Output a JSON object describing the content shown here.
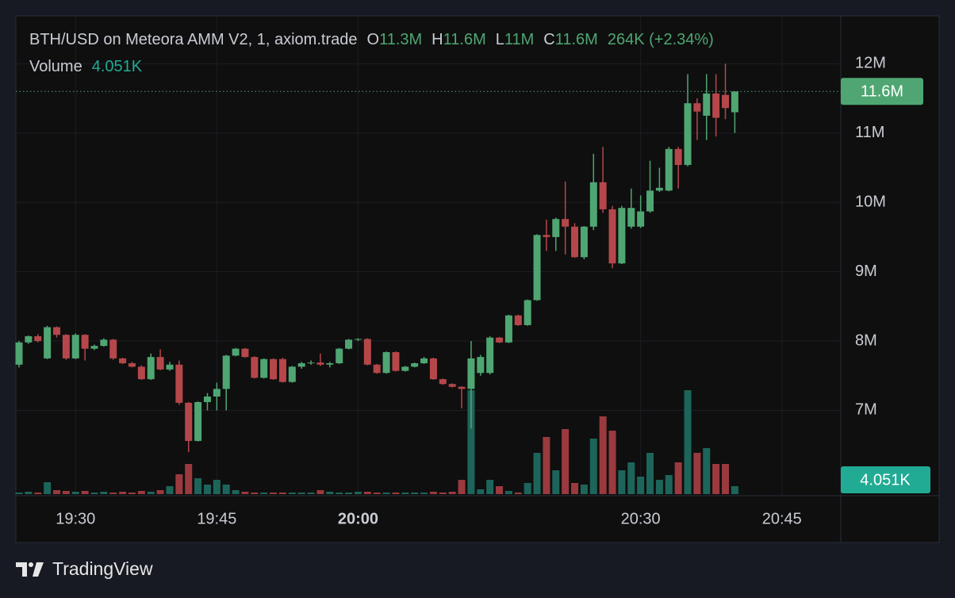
{
  "chart_data": {
    "type": "candlestick",
    "title": "BTH/USD on Meteora AMM V2, 1, axiom.trade",
    "ohlc_labels": [
      {
        "key": "O",
        "value": "11.3M"
      },
      {
        "key": "H",
        "value": "11.6M"
      },
      {
        "key": "L",
        "value": "11M"
      },
      {
        "key": "C",
        "value": "11.6M"
      }
    ],
    "change": "264K (+2.34%)",
    "volume_title": "Volume",
    "volume_value_label": "4.051K",
    "last_price_label": "11.6M",
    "x": [
      "19:24",
      "19:25",
      "19:26",
      "19:27",
      "19:28",
      "19:29",
      "19:30",
      "19:31",
      "19:32",
      "19:33",
      "19:34",
      "19:35",
      "19:36",
      "19:37",
      "19:38",
      "19:39",
      "19:40",
      "19:41",
      "19:42",
      "19:43",
      "19:44",
      "19:45",
      "19:46",
      "19:47",
      "19:48",
      "19:49",
      "19:50",
      "19:51",
      "19:52",
      "19:53",
      "19:54",
      "19:55",
      "19:56",
      "19:57",
      "19:58",
      "19:59",
      "20:00",
      "20:01",
      "20:02",
      "20:03",
      "20:04",
      "20:05",
      "20:06",
      "20:07",
      "20:08",
      "20:09",
      "20:10",
      "20:11",
      "20:12",
      "20:13",
      "20:14",
      "20:15",
      "20:16",
      "20:17",
      "20:18",
      "20:19",
      "20:20",
      "20:21",
      "20:22",
      "20:23",
      "20:24",
      "20:25",
      "20:26",
      "20:27",
      "20:28",
      "20:29",
      "20:30",
      "20:31",
      "20:32",
      "20:33",
      "20:34",
      "20:35",
      "20:36",
      "20:37",
      "20:38",
      "20:39",
      "20:40"
    ],
    "open": [
      7660000.0,
      7980000.0,
      8070000.0,
      7750000.0,
      8200000.0,
      8090000.0,
      7750000.0,
      8090000.0,
      7890000.0,
      7930000.0,
      8020000.0,
      7750000.0,
      7680000.0,
      7630000.0,
      7450000.0,
      7770000.0,
      7590000.0,
      7660000.0,
      7110000.0,
      6560000.0,
      7120000.0,
      7200000.0,
      7310000.0,
      7790000.0,
      7890000.0,
      7770000.0,
      7470000.0,
      7740000.0,
      7740000.0,
      7410000.0,
      7630000.0,
      7680000.0,
      7690000.0,
      7660000.0,
      7680000.0,
      7890000.0,
      8020000.0,
      8030000.0,
      7660000.0,
      7540000.0,
      7840000.0,
      7570000.0,
      7630000.0,
      7680000.0,
      7750000.0,
      7450000.0,
      7380000.0,
      7340000.0,
      7310000.0,
      7540000.0,
      7540000.0,
      8050000.0,
      7980000.0,
      8370000.0,
      8230000.0,
      8590000.0,
      9530000.0,
      9500000.0,
      9760000.0,
      9650000.0,
      9210000.0,
      9650000.0,
      10290000.0,
      9900000.0,
      9120000.0,
      9650000.0,
      9650000.0,
      9870000.0,
      10170000.0,
      10170000.0,
      10770000.0,
      10540000.0,
      11430000.0,
      11250000.0,
      11570000.0,
      11550000.0,
      11300000.0
    ],
    "high": [
      8000000.0,
      8080000.0,
      8100000.0,
      8220000.0,
      8210000.0,
      8100000.0,
      8110000.0,
      8100000.0,
      7950000.0,
      8040000.0,
      8030000.0,
      7760000.0,
      7700000.0,
      7650000.0,
      7820000.0,
      7880000.0,
      7700000.0,
      7720000.0,
      7120000.0,
      7130000.0,
      7250000.0,
      7400000.0,
      7800000.0,
      7900000.0,
      7900000.0,
      7780000.0,
      7750000.0,
      7750000.0,
      7760000.0,
      7640000.0,
      7700000.0,
      7720000.0,
      7820000.0,
      7700000.0,
      7900000.0,
      8030000.0,
      8040000.0,
      8040000.0,
      7670000.0,
      7850000.0,
      7850000.0,
      7640000.0,
      7690000.0,
      7770000.0,
      7760000.0,
      7460000.0,
      7390000.0,
      7350000.0,
      8000000.0,
      7800000.0,
      8070000.0,
      8060000.0,
      8380000.0,
      8380000.0,
      8600000.0,
      9540000.0,
      9750000.0,
      9780000.0,
      10300000.0,
      9700000.0,
      9660000.0,
      10700000.0,
      10800000.0,
      9950000.0,
      9950000.0,
      10200000.0,
      10100000.0,
      10600000.0,
      10500000.0,
      10800000.0,
      10800000.0,
      11850000.0,
      11500000.0,
      11850000.0,
      11850000.0,
      12000000.0,
      11600000.0
    ],
    "low": [
      7620000.0,
      7960000.0,
      7980000.0,
      7740000.0,
      8050000.0,
      7730000.0,
      7740000.0,
      7720000.0,
      7870000.0,
      7920000.0,
      7730000.0,
      7670000.0,
      7620000.0,
      7440000.0,
      7440000.0,
      7580000.0,
      7570000.0,
      7080000.0,
      6400000.0,
      6550000.0,
      7000000.0,
      7000000.0,
      7000000.0,
      7780000.0,
      7760000.0,
      7460000.0,
      7460000.0,
      7440000.0,
      7400000.0,
      7400000.0,
      7600000.0,
      7660000.0,
      7640000.0,
      7620000.0,
      7670000.0,
      7880000.0,
      8000000.0,
      7650000.0,
      7530000.0,
      7530000.0,
      7560000.0,
      7560000.0,
      7620000.0,
      7670000.0,
      7440000.0,
      7370000.0,
      7330000.0,
      7030000.0,
      6740000.0,
      7500000.0,
      7520000.0,
      7970000.0,
      7970000.0,
      8220000.0,
      8220000.0,
      8580000.0,
      9300000.0,
      9300000.0,
      9250000.0,
      9200000.0,
      9180000.0,
      9600000.0,
      9850000.0,
      9050000.0,
      9110000.0,
      9620000.0,
      9630000.0,
      9850000.0,
      10150000.0,
      10160000.0,
      10200000.0,
      10520000.0,
      10900000.0,
      10900000.0,
      10950000.0,
      11200000.0,
      11000000.0
    ],
    "close": [
      7980000.0,
      8070000.0,
      8000000.0,
      8200000.0,
      8090000.0,
      7750000.0,
      8090000.0,
      7890000.0,
      7930000.0,
      8020000.0,
      7750000.0,
      7680000.0,
      7630000.0,
      7450000.0,
      7770000.0,
      7590000.0,
      7660000.0,
      7110000.0,
      6560000.0,
      7120000.0,
      7200000.0,
      7310000.0,
      7790000.0,
      7890000.0,
      7770000.0,
      7470000.0,
      7740000.0,
      7450000.0,
      7410000.0,
      7630000.0,
      7680000.0,
      7690000.0,
      7660000.0,
      7680000.0,
      7890000.0,
      8020000.0,
      8030000.0,
      7660000.0,
      7540000.0,
      7840000.0,
      7570000.0,
      7630000.0,
      7680000.0,
      7750000.0,
      7450000.0,
      7380000.0,
      7340000.0,
      7310000.0,
      7750000.0,
      7770000.0,
      8050000.0,
      7980000.0,
      8370000.0,
      8230000.0,
      8590000.0,
      9530000.0,
      9500000.0,
      9760000.0,
      9650000.0,
      9210000.0,
      9650000.0,
      10290000.0,
      9900000.0,
      9120000.0,
      9920000.0,
      9920000.0,
      9870000.0,
      10170000.0,
      10210000.0,
      10770000.0,
      10540000.0,
      11430000.0,
      11310000.0,
      11570000.0,
      11220000.0,
      11360000.0,
      11600000.0
    ],
    "volume": [
      810,
      1215,
      810,
      6075,
      2025,
      1620,
      1215,
      1620,
      810,
      1215,
      810,
      1215,
      810,
      1620,
      1215,
      2025,
      4051,
      10125,
      15390,
      8100,
      4860,
      7290,
      4860,
      2025,
      1215,
      810,
      810,
      810,
      810,
      810,
      810,
      810,
      2025,
      1215,
      810,
      810,
      1215,
      1215,
      810,
      810,
      810,
      810,
      810,
      810,
      1215,
      810,
      1215,
      7290,
      53055,
      2430,
      7290,
      4051,
      1620,
      810,
      5670,
      21060,
      29160,
      12150,
      33210,
      5670,
      4860,
      28350,
      39690,
      32400,
      12150,
      16200,
      8910,
      21060,
      7290,
      9720,
      16200,
      53055,
      21060,
      23490,
      15390,
      15390,
      4051
    ],
    "ylim": [
      5770000,
      12690000
    ],
    "yticks": [
      {
        "value": 7000000,
        "label": "7M"
      },
      {
        "value": 8000000,
        "label": "8M"
      },
      {
        "value": 9000000,
        "label": "9M"
      },
      {
        "value": 10000000,
        "label": "10M"
      },
      {
        "value": 11000000,
        "label": "11M"
      },
      {
        "value": 12000000,
        "label": "12M"
      }
    ],
    "xlim": [
      "19:24",
      "20:51"
    ],
    "xticks": [
      "19:30",
      "19:45",
      "20:00",
      "20:30",
      "20:45"
    ],
    "grid": true,
    "up_color": "#4fa672",
    "down_color": "#b5474a",
    "volume_up_color": "#1d655a",
    "volume_down_color": "#9b3a3e",
    "volume_badge_color": "#22ab94"
  },
  "brand": "TradingView"
}
